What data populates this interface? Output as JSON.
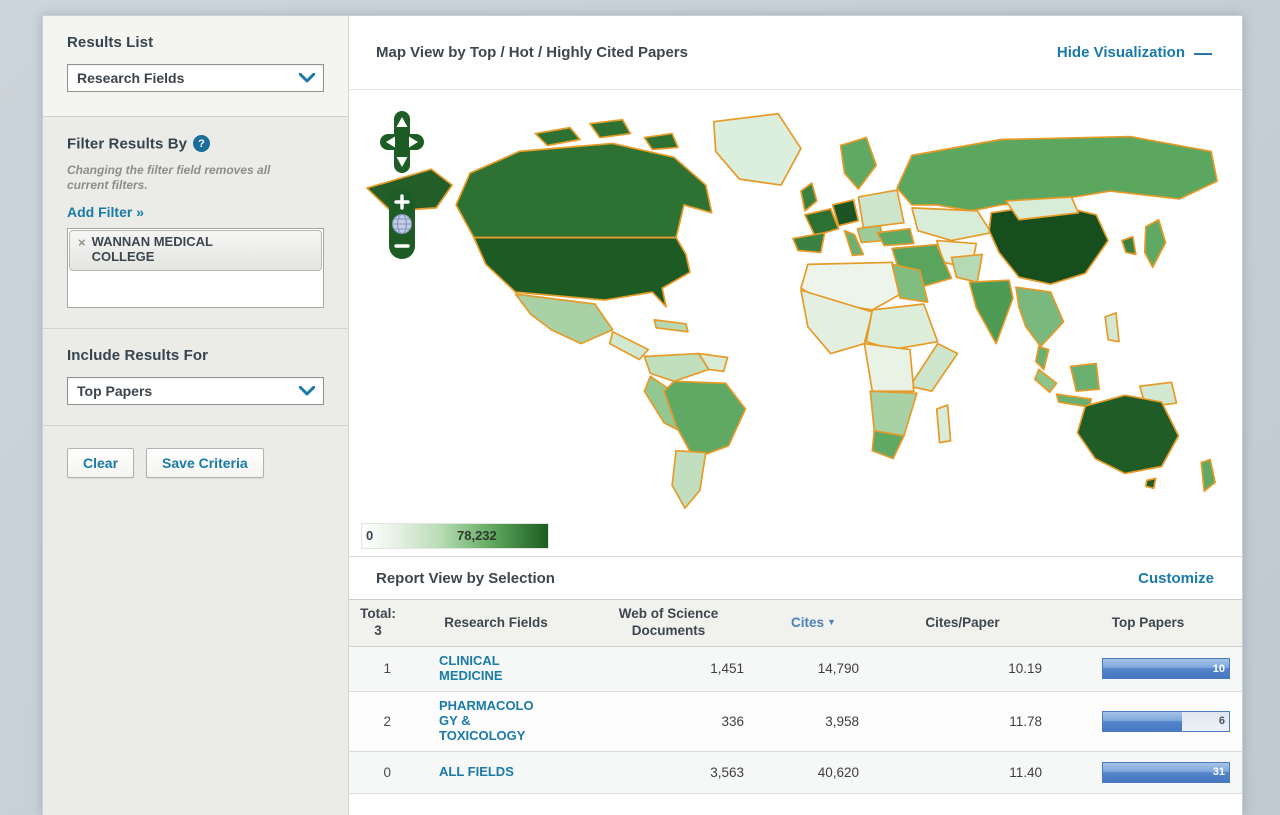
{
  "sidebar": {
    "results_list": {
      "heading": "Results List",
      "dropdown_value": "Research Fields"
    },
    "filter": {
      "heading": "Filter Results By",
      "help_glyph": "?",
      "note_line1": "Changing the filter field removes all",
      "note_line2": "current filters.",
      "add_filter_label": "Add Filter »",
      "chips": [
        {
          "remove_glyph": "×",
          "label": "WANNAN MEDICAL COLLEGE"
        }
      ]
    },
    "include": {
      "heading": "Include Results For",
      "dropdown_value": "Top Papers"
    },
    "buttons": {
      "clear": "Clear",
      "save": "Save Criteria"
    }
  },
  "map_panel": {
    "title": "Map View by Top / Hot / Highly Cited Papers",
    "hide_link": "Hide Visualization",
    "hide_dash": "—",
    "legend": {
      "min": "0",
      "max": "78,232"
    },
    "controls": {
      "zoom_in": "+",
      "zoom_out": "−"
    },
    "region_colors": {
      "alaska": "#235e29",
      "canada": "#2d7233",
      "canadian_islands": "#2d7233",
      "greenland": "#dceedc",
      "usa": "#1d5b25",
      "mexico": "#a9d1a6",
      "central_america": "#d2e8d0",
      "caribbean": "#b5d9b3",
      "colombia": "#bfdfbd",
      "venezuela": "#d7ebd5",
      "peru": "#93c791",
      "brazil": "#5fa964",
      "argentina": "#c1dfbf",
      "uk": "#3a8142",
      "scandinavia": "#5fa964",
      "france": "#2c7132",
      "germany": "#1c5523",
      "spain": "#3a8142",
      "italy": "#6bb06f",
      "east_europe": "#cde6cb",
      "balkans": "#9ccb99",
      "russia": "#5ba75f",
      "kazakhstan": "#d9ecd7",
      "turkey": "#5fa964",
      "saudi": "#5aa55e",
      "iran": "#e8f3e6",
      "pakistan": "#b5d9b3",
      "north_africa": "#edf5eb",
      "egypt": "#82bd80",
      "west_africa": "#e3f0e1",
      "sahel": "#dceeda",
      "east_africa": "#cde6cb",
      "central_africa": "#e8f3e6",
      "southern_africa": "#a9d1a6",
      "south_africa": "#5fa964",
      "madagascar": "#d9ecd7",
      "india": "#4d9a54",
      "china": "#174e1d",
      "mongolia": "#d9ecd7",
      "se_asia": "#79b97d",
      "malay": "#6bb06f",
      "borneo": "#6bb06f",
      "sumatra": "#8cc48a",
      "java": "#6bb06f",
      "new_guinea": "#d2e8d0",
      "philippines": "#d2e8d0",
      "japan": "#5fa964",
      "korea": "#3a8142",
      "australia": "#1f5c26",
      "new_zealand": "#5fa964",
      "tasmania": "#1f5c26"
    }
  },
  "report": {
    "title": "Report View by Selection",
    "customize_link": "Customize",
    "columns": {
      "total_line1": "Total:",
      "total_line2": "3",
      "research_fields": "Research Fields",
      "wos_line1": "Web of Science",
      "wos_line2": "Documents",
      "cites": "Cites",
      "sort_arrow": "▼",
      "cites_paper": "Cites/Paper",
      "top_papers": "Top Papers"
    },
    "rows": [
      {
        "rank": "1",
        "field": "CLINICAL MEDICINE",
        "docs": "1,451",
        "cites": "14,790",
        "cites_per_paper": "10.19",
        "top_papers": "10",
        "bar_pct": 100
      },
      {
        "rank": "2",
        "field": "PHARMACOLOGY & TOXICOLOGY",
        "docs": "336",
        "cites": "3,958",
        "cites_per_paper": "11.78",
        "top_papers": "6",
        "bar_pct": 63
      },
      {
        "rank": "0",
        "field": "ALL FIELDS",
        "docs": "3,563",
        "cites": "40,620",
        "cites_per_paper": "11.40",
        "top_papers": "31",
        "bar_pct": 100
      }
    ]
  }
}
